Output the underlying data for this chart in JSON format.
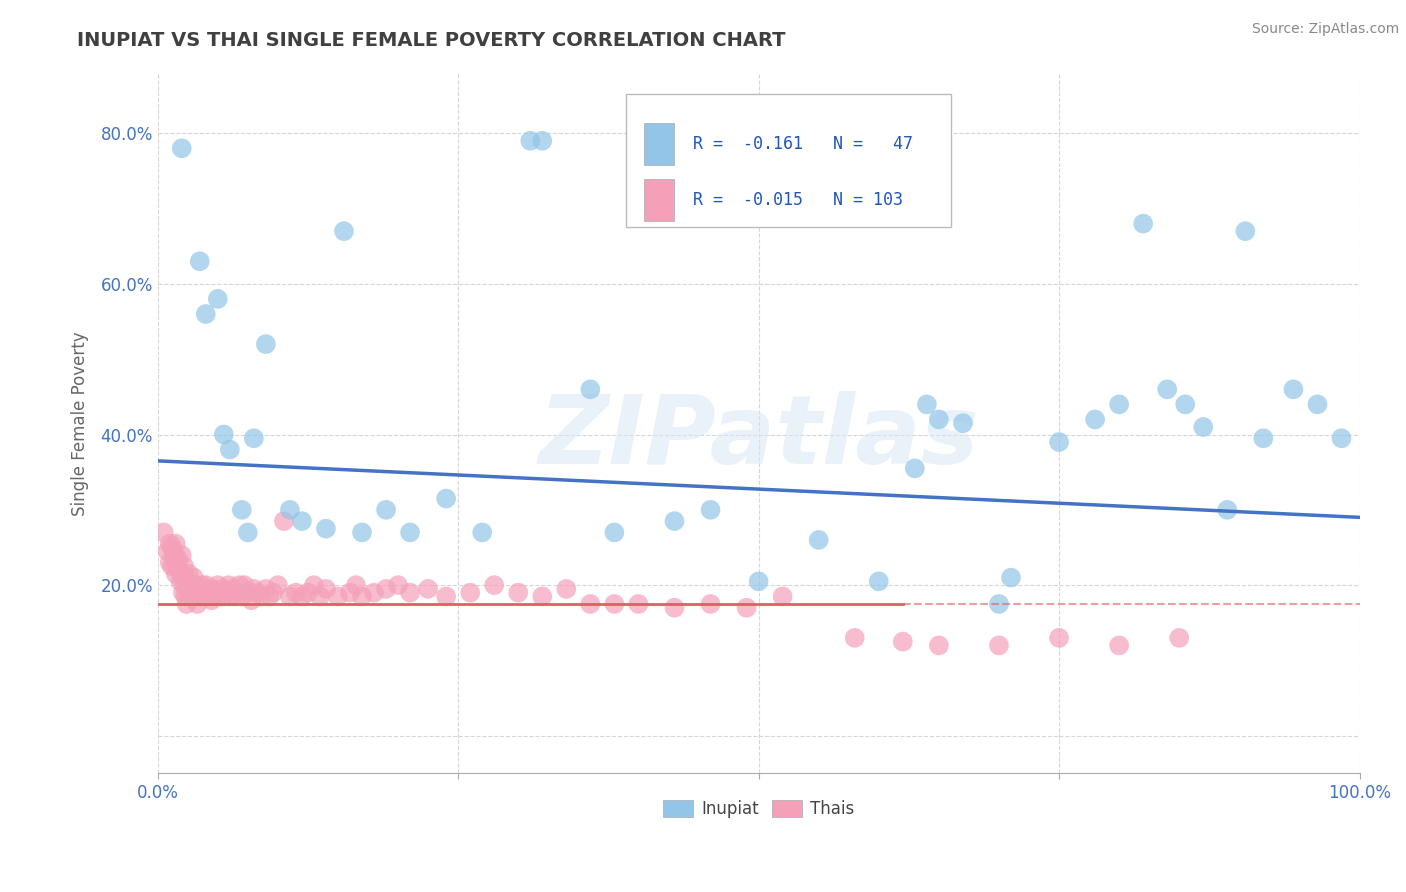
{
  "title": "INUPIAT VS THAI SINGLE FEMALE POVERTY CORRELATION CHART",
  "source": "Source: ZipAtlas.com",
  "ylabel": "Single Female Poverty",
  "xlim": [
    0,
    1
  ],
  "ylim": [
    -0.05,
    0.88
  ],
  "xtick_vals": [
    0.0,
    0.25,
    0.5,
    0.75,
    1.0
  ],
  "xtick_labels": [
    "0.0%",
    "",
    "",
    "",
    "100.0%"
  ],
  "ytick_vals": [
    0.0,
    0.2,
    0.4,
    0.6,
    0.8
  ],
  "ytick_labels": [
    "",
    "20.0%",
    "40.0%",
    "60.0%",
    "80.0%"
  ],
  "inupiat_color": "#92C5E8",
  "thai_color": "#F4A0B8",
  "inupiat_line_color": "#4472C4",
  "thai_line_color": "#E06060",
  "background_color": "#FFFFFF",
  "grid_color": "#CCCCCC",
  "title_color": "#404040",
  "watermark_text": "ZIPatlas",
  "legend_label_inupiat": "Inupiat",
  "legend_label_thai": "Thais",
  "inupiat_R": -0.161,
  "inupiat_N": 47,
  "thai_R": -0.015,
  "thai_N": 103,
  "inupiat_x": [
    0.02,
    0.035,
    0.04,
    0.05,
    0.055,
    0.06,
    0.07,
    0.075,
    0.08,
    0.09,
    0.11,
    0.12,
    0.14,
    0.155,
    0.17,
    0.19,
    0.21,
    0.24,
    0.27,
    0.31,
    0.32,
    0.36,
    0.38,
    0.43,
    0.46,
    0.5,
    0.55,
    0.6,
    0.63,
    0.64,
    0.65,
    0.67,
    0.7,
    0.71,
    0.75,
    0.78,
    0.8,
    0.82,
    0.84,
    0.855,
    0.87,
    0.89,
    0.905,
    0.92,
    0.945,
    0.965,
    0.985
  ],
  "inupiat_y": [
    0.78,
    0.63,
    0.56,
    0.58,
    0.4,
    0.38,
    0.3,
    0.27,
    0.395,
    0.52,
    0.3,
    0.285,
    0.275,
    0.67,
    0.27,
    0.3,
    0.27,
    0.315,
    0.27,
    0.79,
    0.79,
    0.46,
    0.27,
    0.285,
    0.3,
    0.205,
    0.26,
    0.205,
    0.355,
    0.44,
    0.42,
    0.415,
    0.175,
    0.21,
    0.39,
    0.42,
    0.44,
    0.68,
    0.46,
    0.44,
    0.41,
    0.3,
    0.67,
    0.395,
    0.46,
    0.44,
    0.395
  ],
  "thai_x": [
    0.005,
    0.008,
    0.01,
    0.01,
    0.012,
    0.012,
    0.013,
    0.014,
    0.015,
    0.015,
    0.015,
    0.016,
    0.017,
    0.018,
    0.019,
    0.02,
    0.02,
    0.021,
    0.022,
    0.022,
    0.023,
    0.023,
    0.024,
    0.025,
    0.026,
    0.027,
    0.028,
    0.029,
    0.03,
    0.031,
    0.032,
    0.033,
    0.034,
    0.036,
    0.037,
    0.038,
    0.04,
    0.041,
    0.042,
    0.044,
    0.045,
    0.046,
    0.048,
    0.05,
    0.051,
    0.052,
    0.054,
    0.055,
    0.057,
    0.059,
    0.06,
    0.062,
    0.064,
    0.066,
    0.068,
    0.07,
    0.072,
    0.075,
    0.078,
    0.08,
    0.083,
    0.086,
    0.09,
    0.093,
    0.096,
    0.1,
    0.105,
    0.11,
    0.115,
    0.12,
    0.125,
    0.13,
    0.135,
    0.14,
    0.15,
    0.16,
    0.165,
    0.17,
    0.18,
    0.19,
    0.2,
    0.21,
    0.225,
    0.24,
    0.26,
    0.28,
    0.3,
    0.32,
    0.34,
    0.36,
    0.38,
    0.4,
    0.43,
    0.46,
    0.49,
    0.52,
    0.58,
    0.62,
    0.65,
    0.7,
    0.75,
    0.8,
    0.85
  ],
  "thai_y": [
    0.27,
    0.245,
    0.255,
    0.23,
    0.25,
    0.225,
    0.245,
    0.235,
    0.255,
    0.235,
    0.215,
    0.225,
    0.235,
    0.22,
    0.205,
    0.24,
    0.215,
    0.19,
    0.225,
    0.2,
    0.21,
    0.185,
    0.175,
    0.195,
    0.215,
    0.2,
    0.185,
    0.195,
    0.21,
    0.2,
    0.185,
    0.175,
    0.195,
    0.185,
    0.2,
    0.19,
    0.2,
    0.185,
    0.195,
    0.19,
    0.18,
    0.195,
    0.185,
    0.2,
    0.19,
    0.185,
    0.195,
    0.185,
    0.19,
    0.2,
    0.185,
    0.195,
    0.185,
    0.19,
    0.2,
    0.185,
    0.2,
    0.19,
    0.18,
    0.195,
    0.19,
    0.185,
    0.195,
    0.185,
    0.19,
    0.2,
    0.285,
    0.185,
    0.19,
    0.185,
    0.19,
    0.2,
    0.185,
    0.195,
    0.185,
    0.19,
    0.2,
    0.185,
    0.19,
    0.195,
    0.2,
    0.19,
    0.195,
    0.185,
    0.19,
    0.2,
    0.19,
    0.185,
    0.195,
    0.175,
    0.175,
    0.175,
    0.17,
    0.175,
    0.17,
    0.185,
    0.13,
    0.125,
    0.12,
    0.12,
    0.13,
    0.12,
    0.13
  ],
  "inupiat_line_start_y": 0.365,
  "inupiat_line_end_y": 0.29,
  "thai_line_y": 0.175
}
